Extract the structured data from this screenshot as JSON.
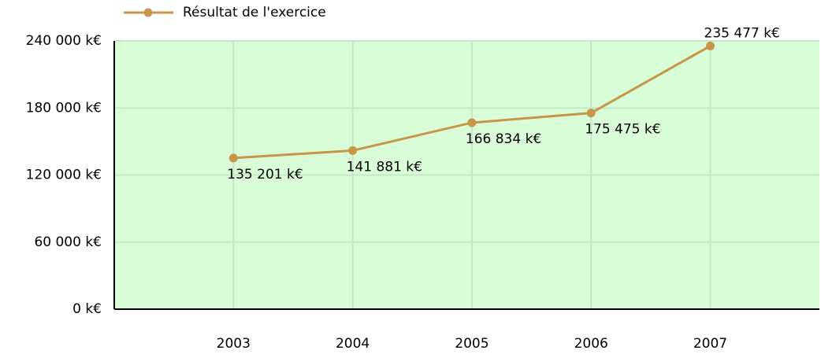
{
  "chart_data": {
    "type": "line",
    "categories": [
      "2003",
      "2004",
      "2005",
      "2006",
      "2007"
    ],
    "series": [
      {
        "name": "Résultat de l'exercice",
        "color": "#c8964a",
        "values": [
          135201,
          141881,
          166834,
          175475,
          235477
        ],
        "value_labels": [
          "135 201 k€",
          "141 881 k€",
          "166 834 k€",
          "175 475 k€",
          "235 477 k€"
        ]
      }
    ],
    "ylim": [
      0,
      240000
    ],
    "yticks": [
      {
        "value": 0,
        "label": "0 k€"
      },
      {
        "value": 60000,
        "label": "60 000 k€"
      },
      {
        "value": 120000,
        "label": "120 000 k€"
      },
      {
        "value": 180000,
        "label": "180 000 k€"
      },
      {
        "value": 240000,
        "label": "240 000 k€"
      }
    ],
    "grid": true,
    "legend": "top-left",
    "background": "#d9fdd6"
  }
}
